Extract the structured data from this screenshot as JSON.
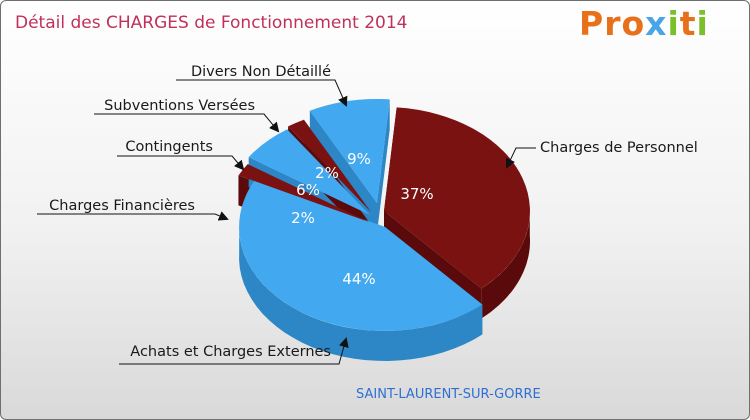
{
  "title": "Détail des CHARGES de Fonctionnement 2014",
  "logo": {
    "text": "Proxiti",
    "letters": [
      {
        "ch": "P",
        "color": "#e8701a"
      },
      {
        "ch": "r",
        "color": "#e8701a"
      },
      {
        "ch": "o",
        "color": "#e8701a"
      },
      {
        "ch": "x",
        "color": "#49a4e8"
      },
      {
        "ch": "i",
        "color": "#7bbf2a"
      },
      {
        "ch": "t",
        "color": "#e8701a"
      },
      {
        "ch": "i",
        "color": "#7bbf2a"
      }
    ]
  },
  "commune": "SAINT-LAURENT-SUR-GORRE",
  "colors": {
    "title": "#c0305a",
    "commune": "#2f6fd3",
    "blue": "#42a8f0",
    "blue_dark": "#2d86c6",
    "maroon": "#7a1212",
    "maroon_dark": "#5a0a0a"
  },
  "chart_data": {
    "type": "pie",
    "title": "Détail des CHARGES de Fonctionnement 2014",
    "slices": [
      {
        "label": "Charges de Personnel",
        "value": 37,
        "pct_label": "37%",
        "color": "maroon"
      },
      {
        "label": "Achats et Charges Externes",
        "value": 44,
        "pct_label": "44%",
        "color": "blue"
      },
      {
        "label": "Charges Financières",
        "value": 2,
        "pct_label": "2%",
        "color": "maroon"
      },
      {
        "label": "Contingents",
        "value": 6,
        "pct_label": "6%",
        "color": "blue"
      },
      {
        "label": "Subventions Versées",
        "value": 2,
        "pct_label": "2%",
        "color": "maroon"
      },
      {
        "label": "Divers Non Détaillé",
        "value": 9,
        "pct_label": "9%",
        "color": "blue"
      }
    ]
  }
}
